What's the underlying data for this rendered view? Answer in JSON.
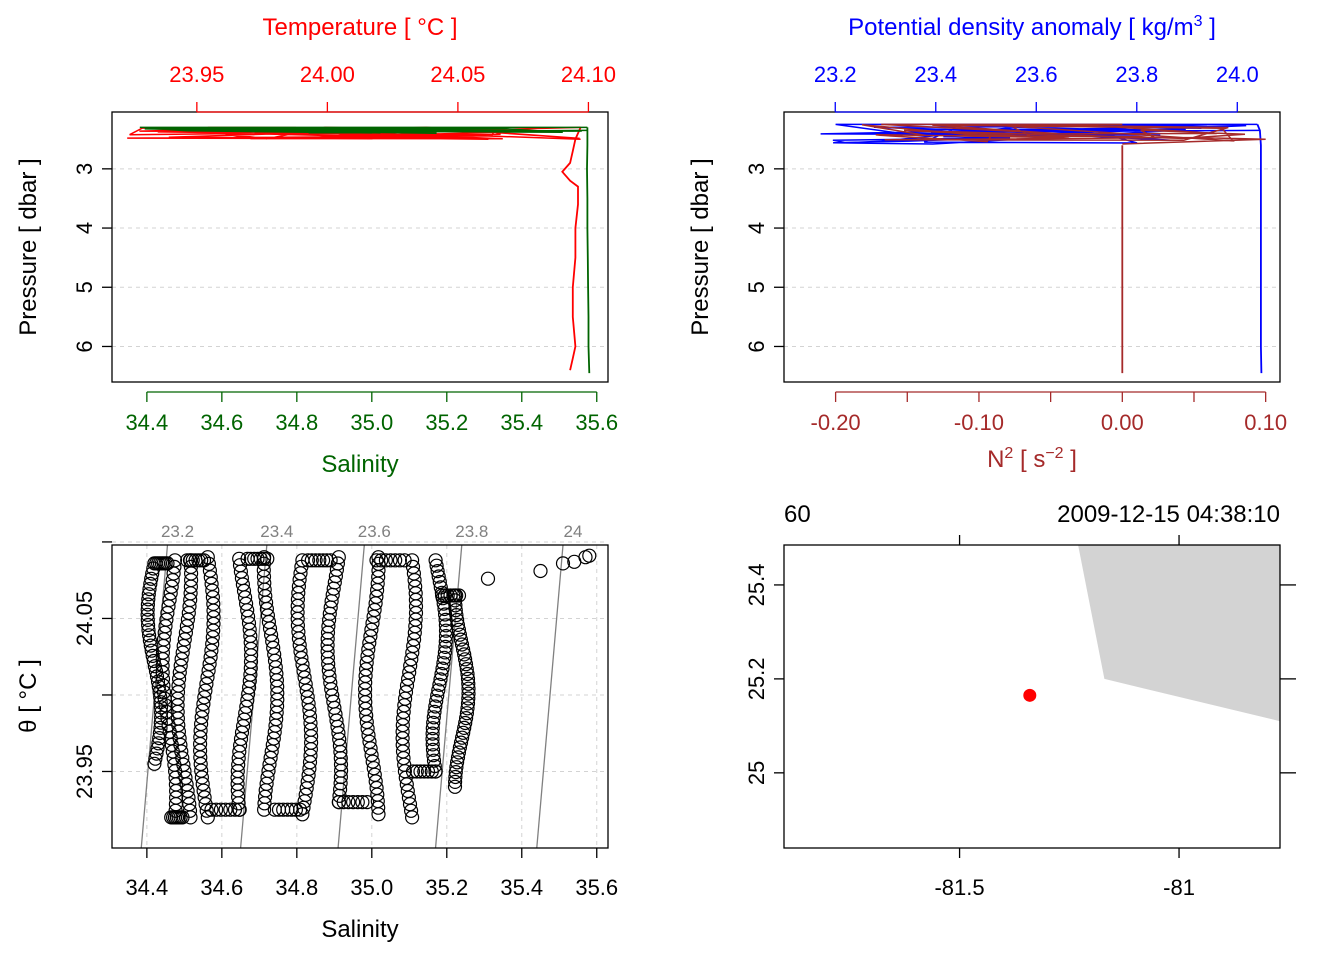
{
  "chart_data": [
    {
      "id": "profile-TS",
      "type": "line",
      "title_top": "Temperature [ °C ]",
      "xlabel_bottom": "Salinity",
      "ylabel": "Pressure [ dbar ]",
      "colors": {
        "temperature": "#FF0000",
        "salinity": "#006400"
      },
      "top_axis": {
        "name": "Temperature",
        "ticks": [
          23.95,
          24.0,
          24.05,
          24.1
        ],
        "tick_labels": [
          "23.95",
          "24.00",
          "24.05",
          "24.10"
        ],
        "range": [
          23.9175,
          24.1075
        ]
      },
      "bottom_axis": {
        "name": "Salinity",
        "ticks": [
          34.4,
          34.6,
          34.8,
          35.0,
          35.2,
          35.4,
          35.6
        ],
        "tick_labels": [
          "34.4",
          "34.6",
          "34.8",
          "35.0",
          "35.2",
          "35.4",
          "35.6"
        ],
        "range": [
          34.307,
          35.63
        ]
      },
      "y_axis": {
        "ticks": [
          3,
          4,
          5,
          6
        ],
        "tick_labels": [
          "3",
          "4",
          "5",
          "6"
        ],
        "range": [
          6.6,
          2.04
        ],
        "reversed": true
      },
      "grid": true,
      "series": [
        {
          "name": "Temperature",
          "color": "#FF0000",
          "profile": [
            [
              24.097,
              2.3
            ],
            [
              24.095,
              2.5
            ],
            [
              24.094,
              2.7
            ],
            [
              24.093,
              2.9
            ],
            [
              24.09,
              3.05
            ],
            [
              24.093,
              3.2
            ],
            [
              24.096,
              3.3
            ],
            [
              24.096,
              3.6
            ],
            [
              24.095,
              4.0
            ],
            [
              24.095,
              4.5
            ],
            [
              24.094,
              5.0
            ],
            [
              24.094,
              5.5
            ],
            [
              24.095,
              6.0
            ],
            [
              24.094,
              6.2
            ],
            [
              24.093,
              6.4
            ]
          ],
          "surface_spread": {
            "min": 23.92,
            "max": 24.097,
            "pressure_range": [
              2.3,
              2.5
            ]
          }
        },
        {
          "name": "Salinity",
          "color": "#006400",
          "profile": [
            [
              35.575,
              2.3
            ],
            [
              35.575,
              2.6
            ],
            [
              35.574,
              3.0
            ],
            [
              35.575,
              3.5
            ],
            [
              35.575,
              4.0
            ],
            [
              35.576,
              4.5
            ],
            [
              35.577,
              5.0
            ],
            [
              35.578,
              5.5
            ],
            [
              35.578,
              6.0
            ],
            [
              35.58,
              6.45
            ]
          ],
          "surface_spread": {
            "min": 34.35,
            "max": 35.575,
            "pressure_range": [
              2.3,
              2.4
            ]
          }
        }
      ]
    },
    {
      "id": "profile-density-N2",
      "type": "line",
      "title_top": "Potential density anomaly [ kg/m³ ]",
      "xlabel_bottom": "N² [ s⁻² ]",
      "ylabel": "Pressure [ dbar ]",
      "colors": {
        "density": "#0000FF",
        "n2": "#A52A2A"
      },
      "top_axis": {
        "name": "Potential density anomaly",
        "ticks": [
          23.2,
          23.4,
          23.6,
          23.8,
          24.0
        ],
        "tick_labels": [
          "23.2",
          "23.4",
          "23.6",
          "23.8",
          "24.0"
        ],
        "range": [
          23.098,
          24.085
        ]
      },
      "bottom_axis": {
        "name": "N2",
        "ticks": [
          -0.2,
          -0.15,
          -0.1,
          -0.05,
          0.0,
          0.05,
          0.1
        ],
        "tick_labels": [
          "-0.20",
          "",
          "-0.10",
          "",
          "0.00",
          "",
          "0.10"
        ],
        "range": [
          -0.236,
          0.11
        ]
      },
      "y_axis": {
        "ticks": [
          3,
          4,
          5,
          6
        ],
        "tick_labels": [
          "3",
          "4",
          "5",
          "6"
        ],
        "range": [
          6.6,
          2.04
        ],
        "reversed": true
      },
      "grid": true,
      "series": [
        {
          "name": "Potential density anomaly",
          "color": "#0000FF",
          "profile": [
            [
              24.04,
              2.25
            ],
            [
              24.045,
              2.35
            ],
            [
              24.047,
              2.6
            ],
            [
              24.047,
              3.0
            ],
            [
              24.047,
              4.0
            ],
            [
              24.047,
              5.0
            ],
            [
              24.047,
              6.0
            ],
            [
              24.048,
              6.45
            ]
          ],
          "surface_spread": {
            "min": 23.13,
            "max": 24.04,
            "pressure_range": [
              2.25,
              2.35
            ]
          }
        },
        {
          "name": "N2",
          "color": "#A52A2A",
          "profile": [
            [
              0.0,
              2.6
            ],
            [
              0.0,
              3.0
            ],
            [
              0.0,
              4.0
            ],
            [
              0.0,
              5.0
            ],
            [
              0.0,
              6.0
            ],
            [
              0.0,
              6.45
            ]
          ],
          "surface_spread": {
            "min": -0.228,
            "max": 0.1,
            "pressure_range": [
              2.25,
              2.55
            ]
          }
        }
      ]
    },
    {
      "id": "TS-diagram",
      "type": "scatter",
      "xlabel": "Salinity",
      "ylabel": "θ [ °C ]",
      "x_axis": {
        "ticks": [
          34.4,
          34.6,
          34.8,
          35.0,
          35.2,
          35.4,
          35.6
        ],
        "tick_labels": [
          "34.4",
          "34.6",
          "34.8",
          "35.0",
          "35.2",
          "35.4",
          "35.6"
        ],
        "range": [
          34.307,
          35.63
        ]
      },
      "y_axis": {
        "ticks": [
          23.95,
          24.05
        ],
        "minor_ticks": [
          23.95,
          24.0,
          24.05,
          24.1
        ],
        "tick_labels": [
          "23.95",
          "24.05"
        ],
        "range": [
          23.9,
          24.098
        ]
      },
      "grid": true,
      "isopycnals": {
        "color": "#808080",
        "labels": [
          "23.2",
          "23.4",
          "23.6",
          "23.8",
          "24"
        ],
        "lines": [
          [
            [
              34.385,
              23.9
            ],
            [
              34.455,
              24.098
            ]
          ],
          [
            [
              34.65,
              23.9
            ],
            [
              34.72,
              24.098
            ]
          ],
          [
            [
              34.91,
              23.9
            ],
            [
              34.98,
              24.098
            ]
          ],
          [
            [
              35.17,
              23.9
            ],
            [
              35.24,
              24.098
            ]
          ],
          [
            [
              35.44,
              23.9
            ],
            [
              35.51,
              24.098
            ]
          ]
        ]
      },
      "point_style": {
        "shape": "open-circle",
        "color": "#000000"
      },
      "series": [
        {
          "name": "Profile points",
          "columns": [
            {
              "x": 34.42,
              "from": 23.955,
              "to": 24.086
            },
            {
              "x": 34.46,
              "from": 23.92,
              "to": 24.088
            },
            {
              "x": 34.5,
              "from": 23.92,
              "to": 24.088
            },
            {
              "x": 34.56,
              "from": 23.92,
              "to": 24.09
            },
            {
              "x": 34.66,
              "from": 23.925,
              "to": 24.089
            },
            {
              "x": 34.73,
              "from": 23.925,
              "to": 24.09
            },
            {
              "x": 34.82,
              "from": 23.922,
              "to": 24.088
            },
            {
              "x": 34.9,
              "from": 23.93,
              "to": 24.09
            },
            {
              "x": 35.0,
              "from": 23.922,
              "to": 24.09
            },
            {
              "x": 35.1,
              "from": 23.92,
              "to": 24.088
            },
            {
              "x": 35.18,
              "from": 23.95,
              "to": 24.088
            },
            {
              "x": 35.24,
              "from": 23.94,
              "to": 24.065
            }
          ],
          "outliers": [
            [
              35.31,
              24.076
            ],
            [
              35.45,
              24.081
            ],
            [
              35.51,
              24.086
            ],
            [
              35.54,
              24.087
            ],
            [
              35.57,
              24.09
            ],
            [
              35.58,
              24.091
            ]
          ]
        }
      ]
    },
    {
      "id": "station-map",
      "type": "scatter",
      "header_left": "60",
      "header_right": "2009-12-15 04:38:10",
      "x_axis": {
        "ticks": [
          -81.5,
          -81
        ],
        "tick_labels": [
          "-81.5",
          "-81"
        ],
        "range": [
          -81.9,
          -80.77
        ]
      },
      "y_axis": {
        "ticks": [
          25.0,
          25.2,
          25.4
        ],
        "tick_labels": [
          "25",
          "25.2",
          "25.4"
        ],
        "range": [
          24.84,
          25.485
        ]
      },
      "land": {
        "color": "#D3D3D3",
        "polygon": [
          [
            -81.23,
            25.485
          ],
          [
            -81.17,
            25.2
          ],
          [
            -80.77,
            25.11
          ],
          [
            -80.77,
            25.485
          ]
        ]
      },
      "station": {
        "lon": -81.34,
        "lat": 25.165,
        "color": "#FF0000"
      }
    }
  ]
}
